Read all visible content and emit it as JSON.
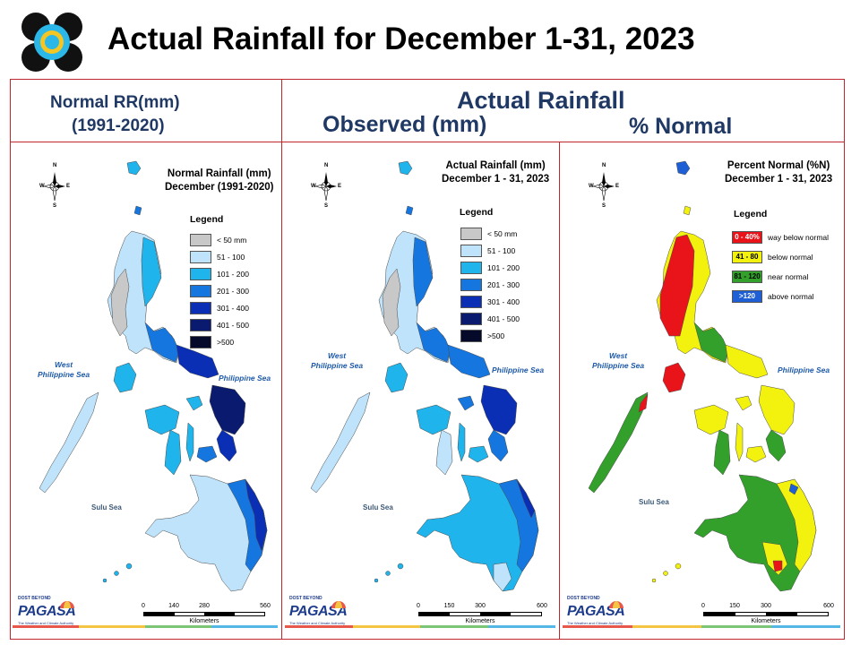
{
  "title": "Actual Rainfall for December 1-31, 2023",
  "headers": {
    "normal_line1": "Normal RR(mm)",
    "normal_line2": "(1991-2020)",
    "actual": "Actual Rainfall",
    "observed": "Observed (mm)",
    "percent": "% Normal"
  },
  "panels": {
    "normal": {
      "title_line1": "Normal Rainfall (mm)",
      "title_line2": "December (1991-2020)",
      "legend_title": "Legend",
      "legend": [
        {
          "label": "< 50 mm",
          "color": "#c8c8c8"
        },
        {
          "label": "51 - 100",
          "color": "#bfe3fb"
        },
        {
          "label": "101 - 200",
          "color": "#1fb4ec"
        },
        {
          "label": "201 - 300",
          "color": "#1576e0"
        },
        {
          "label": "301 - 400",
          "color": "#0b2fb4"
        },
        {
          "label": "401 - 500",
          "color": "#0a1a6e"
        },
        {
          "label": ">500",
          "color": "#050a2a"
        }
      ],
      "sea_west_line1": "West",
      "sea_west_line2": "Philippine Sea",
      "sea_east": "Philippine Sea",
      "sulu": "Sulu Sea",
      "scale_ticks": [
        "0",
        "140",
        "280",
        "560"
      ],
      "scale_unit": "Kilometers"
    },
    "observed": {
      "title_line1": "Actual Rainfall (mm)",
      "title_line2": "December 1 - 31, 2023",
      "legend_title": "Legend",
      "legend": [
        {
          "label": "< 50 mm",
          "color": "#c8c8c8"
        },
        {
          "label": "51 - 100",
          "color": "#bfe3fb"
        },
        {
          "label": "101 - 200",
          "color": "#1fb4ec"
        },
        {
          "label": "201 - 300",
          "color": "#1576e0"
        },
        {
          "label": "301 - 400",
          "color": "#0b2fb4"
        },
        {
          "label": "401 - 500",
          "color": "#0a1a6e"
        },
        {
          "label": ">500",
          "color": "#050a2a"
        }
      ],
      "sea_west_line1": "West",
      "sea_west_line2": "Philippine Sea",
      "sea_east": "Philippine Sea",
      "sulu": "Sulu Sea",
      "scale_ticks": [
        "0",
        "150",
        "300",
        "600"
      ],
      "scale_unit": "Kilometers"
    },
    "percent": {
      "title_line1": "Percent Normal (%N)",
      "title_line2": "December 1 - 31, 2023",
      "legend_title": "Legend",
      "legend": [
        {
          "range": "0 - 40%",
          "label": "way below normal",
          "color": "#e8141a",
          "text_color": "#ffffff"
        },
        {
          "range": "41 - 80",
          "label": "below normal",
          "color": "#f2f20e",
          "text_color": "#000000"
        },
        {
          "range": "81 - 120",
          "label": "near normal",
          "color": "#33a02c",
          "text_color": "#000000"
        },
        {
          "range": ">120",
          "label": "above normal",
          "color": "#1f5fd6",
          "text_color": "#ffffff"
        }
      ],
      "sea_west_line1": "West",
      "sea_west_line2": "Philippine Sea",
      "sea_east": "Philippine Sea",
      "sulu": "Sulu Sea",
      "scale_ticks": [
        "0",
        "150",
        "300",
        "600"
      ],
      "scale_unit": "Kilometers"
    }
  },
  "compass": {
    "n": "N",
    "s": "S",
    "e": "E",
    "w": "W"
  },
  "branding": {
    "dost": "DOST",
    "beyond": "BEYOND",
    "name": "PAGASA",
    "tagline": "The Weather and Climate Authority"
  },
  "colors": {
    "frame": "#c0262d",
    "header_text": "#1f3864",
    "stripe": [
      "#e8574c",
      "#f4c542",
      "#7cc576",
      "#55b7e6"
    ]
  }
}
